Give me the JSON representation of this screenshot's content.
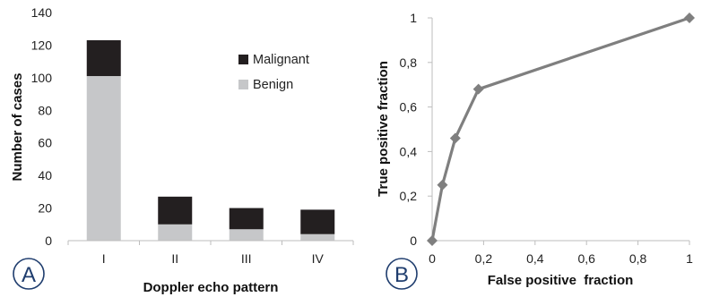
{
  "chart_data": [
    {
      "panel": "A",
      "type": "bar",
      "stacked": true,
      "categories": [
        "I",
        "II",
        "III",
        "IV"
      ],
      "series": [
        {
          "name": "Benign",
          "values": [
            101,
            10,
            7,
            4
          ],
          "color": "#c6c7c9"
        },
        {
          "name": "Malignant",
          "values": [
            22,
            17,
            13,
            15
          ],
          "color": "#231f20"
        }
      ],
      "xlabel": "Doppler echo pattern",
      "ylabel": "Number of cases",
      "ylim": [
        0,
        140
      ],
      "yticks": [
        "0",
        "20",
        "40",
        "60",
        "80",
        "100",
        "120",
        "140"
      ],
      "legend": {
        "placement": "top-right",
        "entries": [
          "Malignant",
          "Benign"
        ]
      },
      "grid": false
    },
    {
      "panel": "B",
      "type": "line",
      "series": [
        {
          "x": [
            0,
            0.04,
            0.09,
            0.18,
            1
          ],
          "y": [
            0,
            0.25,
            0.46,
            0.68,
            1
          ],
          "color": "#7f7f7f",
          "marker": "diamond"
        }
      ],
      "xlabel": "False positive  fraction",
      "ylabel": "True positive fraction",
      "xlim": [
        0,
        1
      ],
      "ylim": [
        0,
        1
      ],
      "xticks": [
        "0",
        "0,2",
        "0,4",
        "0,6",
        "0,8",
        "1"
      ],
      "yticks": [
        "0",
        "0,2",
        "0,4",
        "0,6",
        "0,8",
        "1"
      ],
      "grid": false
    }
  ],
  "panel_labels": {
    "a": "A",
    "b": "B"
  }
}
